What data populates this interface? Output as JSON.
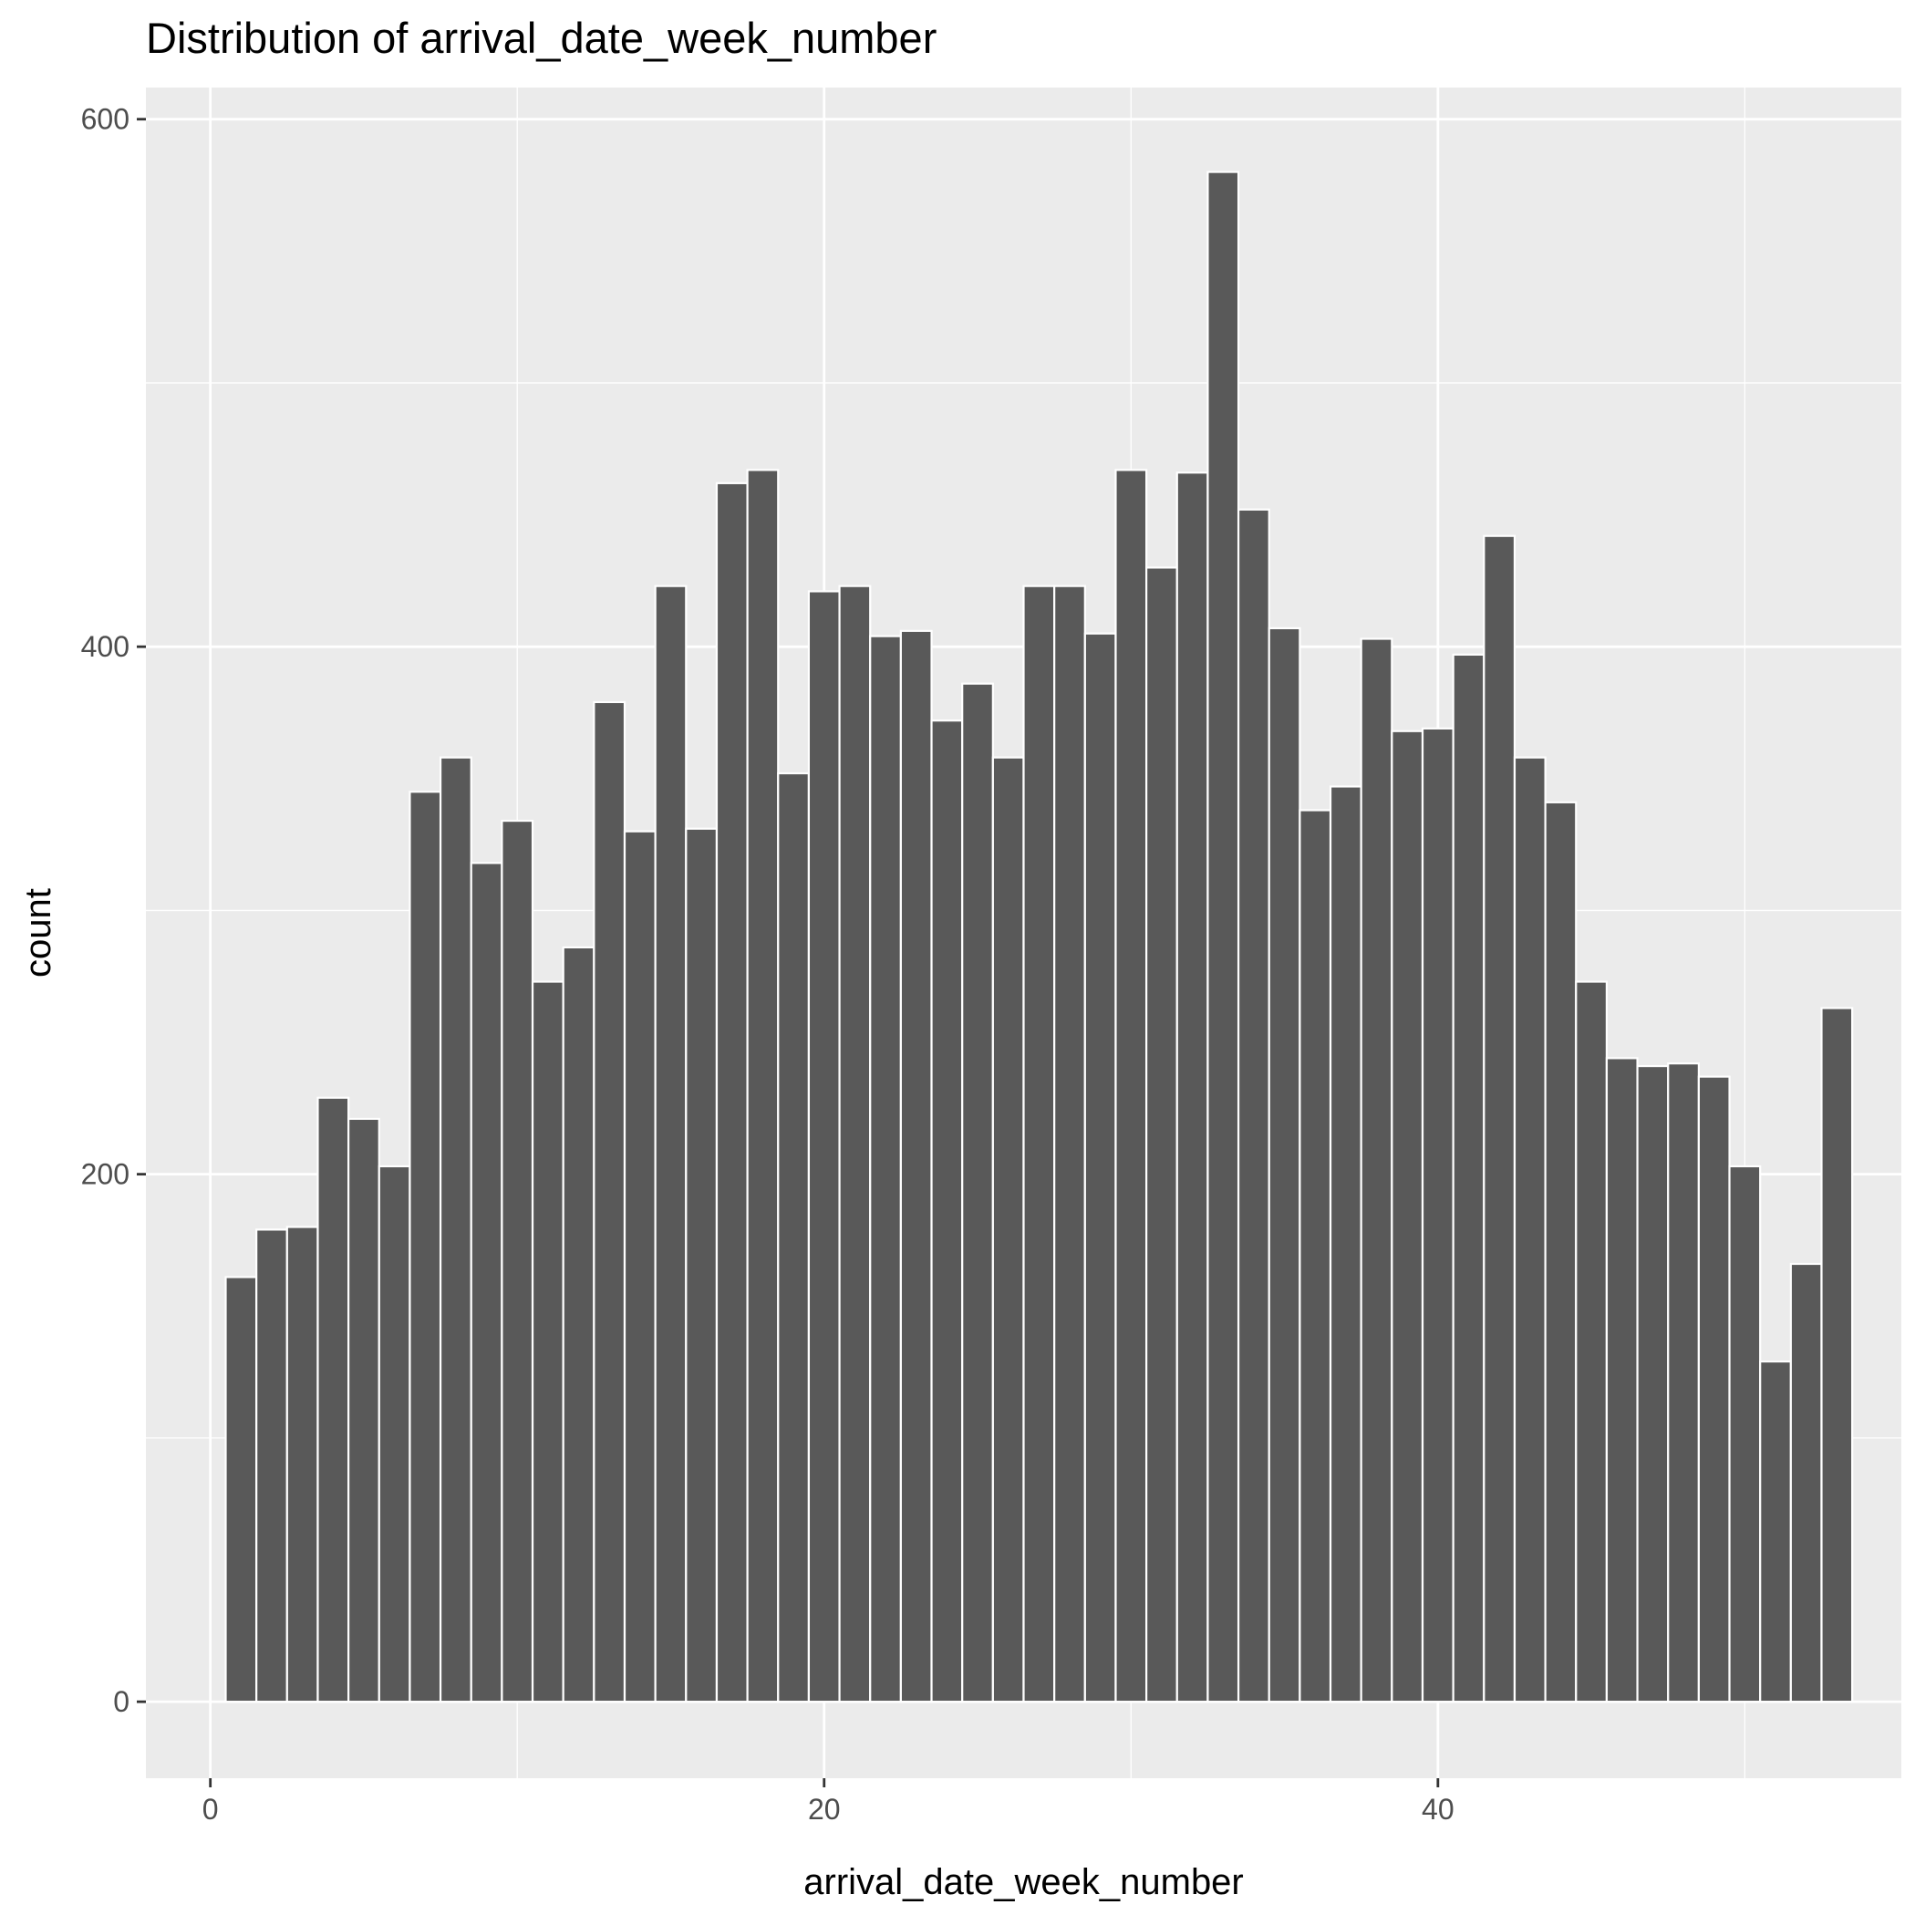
{
  "chart_data": {
    "type": "bar",
    "title": "Distribution of arrival_date_week_number",
    "xlabel": "arrival_date_week_number",
    "ylabel": "count",
    "x_ticks": [
      0,
      20,
      40
    ],
    "y_ticks": [
      0,
      200,
      400,
      600
    ],
    "xlim": [
      -2.1,
      55.1
    ],
    "ylim": [
      -29,
      612
    ],
    "grid": true,
    "legend": "none",
    "bar_color": "#595959",
    "panel_color": "#ebebeb",
    "x": [
      1,
      2,
      3,
      4,
      5,
      6,
      7,
      8,
      9,
      10,
      11,
      12,
      13,
      14,
      15,
      16,
      17,
      18,
      19,
      20,
      21,
      22,
      23,
      24,
      25,
      26,
      27,
      28,
      29,
      30,
      31,
      32,
      33,
      34,
      35,
      36,
      37,
      38,
      39,
      40,
      41,
      42,
      43,
      44,
      45,
      46,
      47,
      48,
      49,
      50,
      51,
      52,
      53
    ],
    "values": [
      161,
      179,
      180,
      229,
      221,
      203,
      345,
      358,
      318,
      334,
      273,
      286,
      379,
      330,
      423,
      331,
      462,
      467,
      352,
      421,
      423,
      404,
      406,
      372,
      386,
      358,
      423,
      423,
      405,
      467,
      430,
      466,
      580,
      452,
      407,
      338,
      347,
      403,
      368,
      369,
      397,
      442,
      358,
      341,
      273,
      244,
      241,
      242,
      237,
      203,
      129,
      166,
      263
    ]
  }
}
